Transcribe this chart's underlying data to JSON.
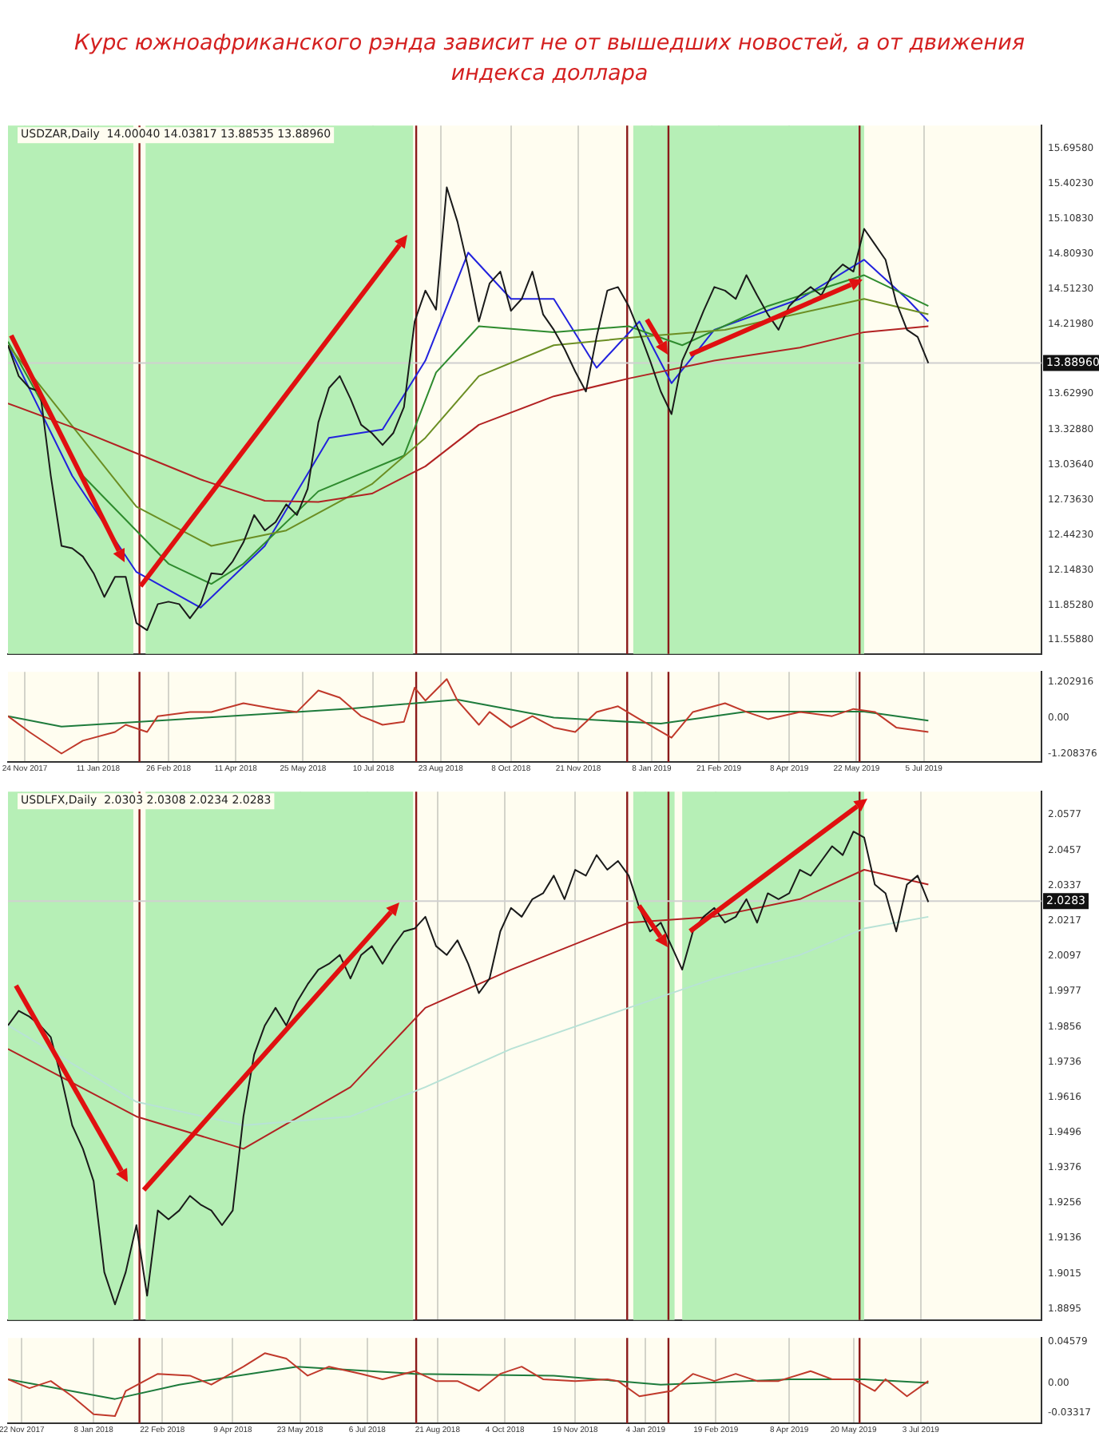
{
  "chart_data": [
    {
      "type": "line",
      "title": "Курс южноафриканского рэнда зависит не от вышедших новостей, а от движения индекса доллара",
      "subtitle": "USDZAR,Daily  14.00040 14.03817 13.88535 13.88960",
      "grid": "x",
      "tick_labels": "y",
      "x": [
        "2017-11-13",
        "2017-11-20",
        "2017-11-27",
        "2017-12-04",
        "2017-12-11",
        "2017-12-18",
        "2017-12-25",
        "2018-01-01",
        "2018-01-08",
        "2018-01-15",
        "2018-01-22",
        "2018-01-29",
        "2018-02-05",
        "2018-02-12",
        "2018-02-19",
        "2018-02-26",
        "2018-03-05",
        "2018-03-12",
        "2018-03-19",
        "2018-03-26",
        "2018-04-02",
        "2018-04-09",
        "2018-04-16",
        "2018-04-23",
        "2018-04-30",
        "2018-05-07",
        "2018-05-14",
        "2018-05-21",
        "2018-05-28",
        "2018-06-04",
        "2018-06-11",
        "2018-06-18",
        "2018-06-25",
        "2018-07-02",
        "2018-07-09",
        "2018-07-16",
        "2018-07-23",
        "2018-07-30",
        "2018-08-06",
        "2018-08-13",
        "2018-08-20",
        "2018-08-27",
        "2018-09-03",
        "2018-09-10",
        "2018-09-17",
        "2018-09-24",
        "2018-10-01",
        "2018-10-08",
        "2018-10-15",
        "2018-10-22",
        "2018-10-29",
        "2018-11-05",
        "2018-11-12",
        "2018-11-19",
        "2018-11-26",
        "2018-12-03",
        "2018-12-10",
        "2018-12-17",
        "2018-12-24",
        "2018-12-31",
        "2019-01-07",
        "2019-01-14",
        "2019-01-21",
        "2019-01-28",
        "2019-02-04",
        "2019-02-11",
        "2019-02-18",
        "2019-02-25",
        "2019-03-04",
        "2019-03-11",
        "2019-03-18",
        "2019-03-25",
        "2019-04-01",
        "2019-04-08",
        "2019-04-15",
        "2019-04-22",
        "2019-04-29",
        "2019-05-06",
        "2019-05-13",
        "2019-05-20",
        "2019-05-27",
        "2019-06-03",
        "2019-06-10",
        "2019-06-17",
        "2019-06-24",
        "2019-07-01",
        "2019-07-08"
      ],
      "series": [
        {
          "color": "#1a1a1a",
          "values": [
            14.04,
            13.78,
            13.68,
            13.65,
            12.94,
            12.35,
            12.33,
            12.26,
            12.12,
            11.92,
            12.09,
            12.09,
            11.7,
            11.64,
            11.86,
            11.88,
            11.86,
            11.74,
            11.86,
            12.12,
            12.11,
            12.22,
            12.38,
            12.61,
            12.48,
            12.55,
            12.7,
            12.61,
            12.83,
            13.39,
            13.68,
            13.78,
            13.59,
            13.37,
            13.3,
            13.2,
            13.3,
            13.52,
            14.24,
            14.5,
            14.34,
            15.37,
            15.08,
            14.69,
            14.24,
            14.56,
            14.66,
            14.33,
            14.43,
            14.66,
            14.3,
            14.17,
            14.01,
            13.82,
            13.65,
            14.11,
            14.5,
            14.53,
            14.37,
            14.15,
            13.91,
            13.65,
            13.46,
            13.91,
            14.11,
            14.33,
            14.53,
            14.5,
            14.43,
            14.63,
            14.46,
            14.3,
            14.17,
            14.37,
            14.46,
            14.53,
            14.46,
            14.63,
            14.72,
            14.66,
            15.02,
            14.89,
            14.76,
            14.4,
            14.17,
            14.11,
            13.89
          ]
        },
        {
          "color": "#b22222",
          "x": [
            "2017-11-13",
            "2017-12-25",
            "2018-02-05",
            "2018-03-19",
            "2018-04-30",
            "2018-06-04",
            "2018-07-09",
            "2018-08-13",
            "2018-09-17",
            "2018-11-05",
            "2018-12-24",
            "2019-02-18",
            "2019-04-15",
            "2019-05-27",
            "2019-07-08"
          ],
          "values": [
            13.55,
            13.35,
            13.13,
            12.91,
            12.73,
            12.72,
            12.79,
            13.02,
            13.37,
            13.61,
            13.76,
            13.91,
            14.02,
            14.15,
            14.2
          ]
        },
        {
          "color": "#6b8e23",
          "x": [
            "2017-11-13",
            "2018-02-05",
            "2018-03-26",
            "2018-05-14",
            "2018-07-09",
            "2018-08-13",
            "2018-09-17",
            "2018-11-05",
            "2018-12-31",
            "2019-02-25",
            "2019-05-27",
            "2019-07-08"
          ],
          "values": [
            14.04,
            12.68,
            12.35,
            12.48,
            12.87,
            13.26,
            13.78,
            14.04,
            14.11,
            14.17,
            14.43,
            14.3
          ]
        },
        {
          "color": "#2e8b2e",
          "x": [
            "2017-11-13",
            "2018-01-01",
            "2018-02-26",
            "2018-03-26",
            "2018-04-16",
            "2018-06-04",
            "2018-07-30",
            "2018-08-20",
            "2018-09-17",
            "2018-11-05",
            "2018-12-24",
            "2019-01-28",
            "2019-03-25",
            "2019-05-27",
            "2019-07-08"
          ],
          "values": [
            14.07,
            12.94,
            12.2,
            12.03,
            12.2,
            12.81,
            13.11,
            13.81,
            14.2,
            14.15,
            14.2,
            14.04,
            14.37,
            14.63,
            14.37
          ]
        },
        {
          "color": "#2222dd",
          "x": [
            "2017-11-13",
            "2017-12-25",
            "2018-02-05",
            "2018-03-19",
            "2018-04-30",
            "2018-06-11",
            "2018-07-16",
            "2018-08-13",
            "2018-09-10",
            "2018-10-08",
            "2018-11-05",
            "2018-12-03",
            "2018-12-31",
            "2019-01-21",
            "2019-02-18",
            "2019-04-15",
            "2019-05-27",
            "2019-06-24",
            "2019-07-08"
          ],
          "values": [
            14.04,
            12.94,
            12.13,
            11.83,
            12.35,
            13.26,
            13.33,
            13.91,
            14.82,
            14.43,
            14.43,
            13.85,
            14.24,
            13.72,
            14.17,
            14.43,
            14.76,
            14.43,
            14.24
          ]
        }
      ],
      "xlim": [
        "2017-11-13",
        "2019-09-20"
      ],
      "xticks": [
        {
          "value": "2017-11-24",
          "label": null
        },
        {
          "value": "2018-01-11",
          "label": null
        },
        {
          "value": "2018-02-26",
          "label": null
        },
        {
          "value": "2018-04-11",
          "label": null
        },
        {
          "value": "2018-05-25",
          "label": null
        },
        {
          "value": "2018-07-10",
          "label": null
        },
        {
          "value": "2018-08-23",
          "label": null
        },
        {
          "value": "2018-10-08",
          "label": null
        },
        {
          "value": "2018-11-21",
          "label": null
        },
        {
          "value": "2019-01-08",
          "label": null
        },
        {
          "value": "2019-02-21",
          "label": null
        },
        {
          "value": "2019-04-08",
          "label": null
        },
        {
          "value": "2019-05-22",
          "label": null
        },
        {
          "value": "2019-07-05",
          "label": null
        }
      ],
      "ylim": [
        11.44,
        15.89
      ],
      "yticks": [
        {
          "value": 11.5588,
          "label": "11.55880"
        },
        {
          "value": 11.8528,
          "label": "11.85280"
        },
        {
          "value": 12.1483,
          "label": "12.14830"
        },
        {
          "value": 12.4423,
          "label": "12.44230"
        },
        {
          "value": 12.7363,
          "label": "12.73630"
        },
        {
          "value": 13.0364,
          "label": "13.03640"
        },
        {
          "value": 13.3288,
          "label": "13.32880"
        },
        {
          "value": 13.6299,
          "label": "13.62990"
        },
        {
          "value": 14.2198,
          "label": "14.21980"
        },
        {
          "value": 14.5123,
          "label": "14.51230"
        },
        {
          "value": 14.8093,
          "label": "14.80930"
        },
        {
          "value": 15.1083,
          "label": "15.10830"
        },
        {
          "value": 15.4023,
          "label": "15.40230"
        },
        {
          "value": 15.6958,
          "label": "15.69580"
        }
      ],
      "bands": [
        {
          "axis": "x",
          "from": "2017-11-13",
          "to": "2018-02-03",
          "color": "#b6efb6"
        },
        {
          "axis": "x",
          "from": "2018-02-11",
          "to": "2018-08-05",
          "color": "#b6efb6"
        },
        {
          "axis": "x",
          "from": "2018-12-27",
          "to": "2019-05-27",
          "color": "#b6efb6"
        }
      ],
      "ref_lines": [
        {
          "axis": "x",
          "value": "2018-02-07",
          "color": "#8b1a1a"
        },
        {
          "axis": "x",
          "value": "2018-08-07",
          "color": "#8b1a1a"
        },
        {
          "axis": "x",
          "value": "2018-12-23",
          "color": "#8b1a1a"
        },
        {
          "axis": "x",
          "value": "2019-01-19",
          "color": "#8b1a1a"
        },
        {
          "axis": "x",
          "value": "2019-05-24",
          "color": "#8b1a1a"
        },
        {
          "axis": "y",
          "value": 13.8896,
          "label": "13.88960",
          "color": "#d0d0d0"
        }
      ]
    },
    {
      "type": "line",
      "grid": "x",
      "series": [
        {
          "color": "#c0392b",
          "x": [
            "2017-11-13",
            "2017-11-27",
            "2017-12-18",
            "2018-01-01",
            "2018-01-22",
            "2018-01-29",
            "2018-02-12",
            "2018-02-19",
            "2018-03-12",
            "2018-03-26",
            "2018-04-16",
            "2018-05-07",
            "2018-05-21",
            "2018-06-04",
            "2018-06-18",
            "2018-07-02",
            "2018-07-16",
            "2018-07-30",
            "2018-08-06",
            "2018-08-13",
            "2018-08-27",
            "2018-09-03",
            "2018-09-17",
            "2018-09-24",
            "2018-10-08",
            "2018-10-22",
            "2018-11-05",
            "2018-11-19",
            "2018-12-03",
            "2018-12-17",
            "2018-12-31",
            "2019-01-21",
            "2019-02-04",
            "2019-02-25",
            "2019-03-11",
            "2019-03-25",
            "2019-04-15",
            "2019-05-06",
            "2019-05-20",
            "2019-06-03",
            "2019-06-17",
            "2019-07-08"
          ],
          "values": [
            0.05,
            -0.48,
            -1.2,
            -0.77,
            -0.48,
            -0.24,
            -0.48,
            0.05,
            0.19,
            0.19,
            0.48,
            0.29,
            0.19,
            0.91,
            0.67,
            0.05,
            -0.24,
            -0.14,
            1.0,
            0.57,
            1.29,
            0.57,
            -0.24,
            0.19,
            -0.33,
            0.05,
            -0.33,
            -0.48,
            0.19,
            0.38,
            -0.05,
            -0.67,
            0.19,
            0.48,
            0.19,
            -0.05,
            0.19,
            0.05,
            0.29,
            0.19,
            -0.33,
            -0.48
          ]
        },
        {
          "color": "#1e7b3c",
          "x": [
            "2017-11-13",
            "2017-12-18",
            "2018-06-25",
            "2018-09-03",
            "2018-11-05",
            "2019-01-14",
            "2019-03-11",
            "2019-05-27",
            "2019-07-08"
          ],
          "values": [
            0.05,
            -0.3,
            0.3,
            0.6,
            0.0,
            -0.2,
            0.2,
            0.2,
            -0.1
          ]
        }
      ],
      "xlim": [
        "2017-11-13",
        "2019-09-20"
      ],
      "xticks": [
        {
          "value": "2017-11-24",
          "label": "24 Nov 2017"
        },
        {
          "value": "2018-01-11",
          "label": "11 Jan 2018"
        },
        {
          "value": "2018-02-26",
          "label": "26 Feb 2018"
        },
        {
          "value": "2018-04-11",
          "label": "11 Apr 2018"
        },
        {
          "value": "2018-05-25",
          "label": "25 May 2018"
        },
        {
          "value": "2018-07-10",
          "label": "10 Jul 2018"
        },
        {
          "value": "2018-08-23",
          "label": "23 Aug 2018"
        },
        {
          "value": "2018-10-08",
          "label": "8 Oct 2018"
        },
        {
          "value": "2018-11-21",
          "label": "21 Nov 2018"
        },
        {
          "value": "2019-01-08",
          "label": "8 Jan 2019"
        },
        {
          "value": "2019-02-21",
          "label": "21 Feb 2019"
        },
        {
          "value": "2019-04-08",
          "label": "8 Apr 2019"
        },
        {
          "value": "2019-05-22",
          "label": "22 May 2019"
        },
        {
          "value": "2019-07-05",
          "label": "5 Jul 2019"
        }
      ],
      "ylim": [
        -1.48,
        1.53
      ],
      "yticks": [
        {
          "value": -1.208376,
          "label": "-1.208376"
        },
        {
          "value": 0,
          "label": "0.00"
        },
        {
          "value": 1.202916,
          "label": "1.202916"
        }
      ],
      "ref_lines": [
        {
          "axis": "x",
          "value": "2018-02-07",
          "color": "#8b1a1a"
        },
        {
          "axis": "x",
          "value": "2018-08-07",
          "color": "#8b1a1a"
        },
        {
          "axis": "x",
          "value": "2018-12-23",
          "color": "#8b1a1a"
        },
        {
          "axis": "x",
          "value": "2019-01-19",
          "color": "#8b1a1a"
        },
        {
          "axis": "x",
          "value": "2019-05-24",
          "color": "#8b1a1a"
        }
      ]
    },
    {
      "type": "line",
      "title": "USDLFX,Daily  2.0303 2.0308 2.0234 2.0283",
      "grid": "x",
      "tick_labels": "y",
      "x": [
        "2017-11-13",
        "2017-11-20",
        "2017-11-27",
        "2017-12-04",
        "2017-12-11",
        "2017-12-18",
        "2017-12-25",
        "2018-01-01",
        "2018-01-08",
        "2018-01-15",
        "2018-01-22",
        "2018-01-29",
        "2018-02-05",
        "2018-02-12",
        "2018-02-19",
        "2018-02-26",
        "2018-03-05",
        "2018-03-12",
        "2018-03-19",
        "2018-03-26",
        "2018-04-02",
        "2018-04-09",
        "2018-04-16",
        "2018-04-23",
        "2018-04-30",
        "2018-05-07",
        "2018-05-14",
        "2018-05-21",
        "2018-05-28",
        "2018-06-04",
        "2018-06-11",
        "2018-06-18",
        "2018-06-25",
        "2018-07-02",
        "2018-07-09",
        "2018-07-16",
        "2018-07-23",
        "2018-07-30",
        "2018-08-06",
        "2018-08-13",
        "2018-08-20",
        "2018-08-27",
        "2018-09-03",
        "2018-09-10",
        "2018-09-17",
        "2018-09-24",
        "2018-10-01",
        "2018-10-08",
        "2018-10-15",
        "2018-10-22",
        "2018-10-29",
        "2018-11-05",
        "2018-11-12",
        "2018-11-19",
        "2018-11-26",
        "2018-12-03",
        "2018-12-10",
        "2018-12-17",
        "2018-12-24",
        "2018-12-31",
        "2019-01-07",
        "2019-01-14",
        "2019-01-21",
        "2019-01-28",
        "2019-02-04",
        "2019-02-11",
        "2019-02-18",
        "2019-02-25",
        "2019-03-04",
        "2019-03-11",
        "2019-03-18",
        "2019-03-25",
        "2019-04-01",
        "2019-04-08",
        "2019-04-15",
        "2019-04-22",
        "2019-04-29",
        "2019-05-06",
        "2019-05-13",
        "2019-05-20",
        "2019-05-27",
        "2019-06-03",
        "2019-06-10",
        "2019-06-17",
        "2019-06-24",
        "2019-07-01",
        "2019-07-08"
      ],
      "series": [
        {
          "color": "#1a1a1a",
          "values": [
            1.986,
            1.991,
            1.989,
            1.986,
            1.982,
            1.968,
            1.952,
            1.944,
            1.933,
            1.902,
            1.891,
            1.902,
            1.918,
            1.894,
            1.923,
            1.92,
            1.923,
            1.928,
            1.925,
            1.923,
            1.918,
            1.923,
            1.955,
            1.976,
            1.986,
            1.992,
            1.986,
            1.994,
            2.0,
            2.005,
            2.007,
            2.01,
            2.002,
            2.01,
            2.013,
            2.007,
            2.013,
            2.018,
            2.019,
            2.023,
            2.013,
            2.01,
            2.015,
            2.007,
            1.997,
            2.002,
            2.018,
            2.026,
            2.023,
            2.029,
            2.031,
            2.037,
            2.029,
            2.039,
            2.037,
            2.044,
            2.039,
            2.042,
            2.037,
            2.026,
            2.018,
            2.021,
            2.013,
            2.005,
            2.018,
            2.023,
            2.026,
            2.021,
            2.023,
            2.029,
            2.021,
            2.031,
            2.029,
            2.031,
            2.039,
            2.037,
            2.042,
            2.047,
            2.044,
            2.052,
            2.05,
            2.034,
            2.031,
            2.018,
            2.034,
            2.037,
            2.028
          ]
        },
        {
          "color": "#b8e2d6",
          "x": [
            "2017-11-13",
            "2018-02-05",
            "2018-04-16",
            "2018-06-25",
            "2018-08-13",
            "2018-10-08",
            "2018-12-24",
            "2019-02-18",
            "2019-04-15",
            "2019-05-27",
            "2019-07-08"
          ],
          "values": [
            1.986,
            1.96,
            1.952,
            1.955,
            1.965,
            1.978,
            1.992,
            2.002,
            2.01,
            2.019,
            2.023
          ]
        },
        {
          "color": "#b22222",
          "x": [
            "2017-11-13",
            "2018-02-05",
            "2018-04-16",
            "2018-06-25",
            "2018-08-13",
            "2018-10-08",
            "2018-12-24",
            "2019-02-18",
            "2019-04-15",
            "2019-05-27",
            "2019-07-08"
          ],
          "values": [
            1.978,
            1.955,
            1.944,
            1.965,
            1.992,
            2.005,
            2.021,
            2.023,
            2.029,
            2.039,
            2.034
          ]
        }
      ],
      "xlim": [
        "2017-11-13",
        "2019-09-20"
      ],
      "xticks": [
        {
          "value": "2017-11-22",
          "label": null
        },
        {
          "value": "2018-01-08",
          "label": null
        },
        {
          "value": "2018-02-22",
          "label": null
        },
        {
          "value": "2018-04-09",
          "label": null
        },
        {
          "value": "2018-05-23",
          "label": null
        },
        {
          "value": "2018-07-06",
          "label": null
        },
        {
          "value": "2018-08-21",
          "label": null
        },
        {
          "value": "2018-10-04",
          "label": null
        },
        {
          "value": "2018-11-19",
          "label": null
        },
        {
          "value": "2019-01-04",
          "label": null
        },
        {
          "value": "2019-02-19",
          "label": null
        },
        {
          "value": "2019-04-08",
          "label": null
        },
        {
          "value": "2019-05-20",
          "label": null
        },
        {
          "value": "2019-07-03",
          "label": null
        }
      ],
      "ylim": [
        1.8857,
        2.0656
      ],
      "yticks": [
        {
          "value": 1.8895,
          "label": "1.8895"
        },
        {
          "value": 1.9015,
          "label": "1.9015"
        },
        {
          "value": 1.9136,
          "label": "1.9136"
        },
        {
          "value": 1.9256,
          "label": "1.9256"
        },
        {
          "value": 1.9376,
          "label": "1.9376"
        },
        {
          "value": 1.9496,
          "label": "1.9496"
        },
        {
          "value": 1.9616,
          "label": "1.9616"
        },
        {
          "value": 1.9736,
          "label": "1.9736"
        },
        {
          "value": 1.9856,
          "label": "1.9856"
        },
        {
          "value": 1.9977,
          "label": "1.9977"
        },
        {
          "value": 2.0097,
          "label": "2.0097"
        },
        {
          "value": 2.0217,
          "label": "2.0217"
        },
        {
          "value": 2.0337,
          "label": "2.0337"
        },
        {
          "value": 2.0457,
          "label": "2.0457"
        },
        {
          "value": 2.0577,
          "label": "2.0577"
        }
      ],
      "bands": [
        {
          "axis": "x",
          "from": "2017-11-13",
          "to": "2018-02-03",
          "color": "#b6efb6"
        },
        {
          "axis": "x",
          "from": "2018-02-11",
          "to": "2018-08-05",
          "color": "#b6efb6"
        },
        {
          "axis": "x",
          "from": "2018-12-27",
          "to": "2019-01-23",
          "color": "#b6efb6"
        },
        {
          "axis": "x",
          "from": "2019-01-28",
          "to": "2019-05-27",
          "color": "#b6efb6"
        }
      ],
      "ref_lines": [
        {
          "axis": "x",
          "value": "2018-02-07",
          "color": "#8b1a1a"
        },
        {
          "axis": "x",
          "value": "2018-08-07",
          "color": "#8b1a1a"
        },
        {
          "axis": "x",
          "value": "2018-12-23",
          "color": "#8b1a1a"
        },
        {
          "axis": "x",
          "value": "2019-01-19",
          "color": "#8b1a1a"
        },
        {
          "axis": "x",
          "value": "2019-05-24",
          "color": "#8b1a1a"
        },
        {
          "axis": "y",
          "value": 2.0283,
          "label": "2.0283",
          "color": "#d0d0d0"
        }
      ]
    },
    {
      "type": "line",
      "grid": "x",
      "series": [
        {
          "color": "#c0392b",
          "x": [
            "2017-11-13",
            "2017-11-27",
            "2017-12-11",
            "2017-12-25",
            "2018-01-08",
            "2018-01-22",
            "2018-01-29",
            "2018-02-19",
            "2018-03-12",
            "2018-03-26",
            "2018-04-16",
            "2018-04-30",
            "2018-05-14",
            "2018-05-28",
            "2018-06-11",
            "2018-07-02",
            "2018-07-16",
            "2018-08-06",
            "2018-08-20",
            "2018-09-03",
            "2018-09-17",
            "2018-10-01",
            "2018-10-15",
            "2018-10-29",
            "2018-11-19",
            "2018-12-10",
            "2018-12-17",
            "2018-12-31",
            "2019-01-21",
            "2019-02-04",
            "2019-02-18",
            "2019-03-04",
            "2019-03-18",
            "2019-04-01",
            "2019-04-22",
            "2019-05-06",
            "2019-05-20",
            "2019-06-03",
            "2019-06-10",
            "2019-06-24",
            "2019-07-08"
          ],
          "values": [
            0.004,
            -0.006,
            0.002,
            -0.015,
            -0.035,
            -0.037,
            -0.009,
            0.01,
            0.008,
            -0.002,
            0.018,
            0.033,
            0.027,
            0.008,
            0.018,
            0.01,
            0.004,
            0.013,
            0.002,
            0.002,
            -0.009,
            0.01,
            0.018,
            0.004,
            0.002,
            0.004,
            0.002,
            -0.015,
            -0.009,
            0.01,
            0.002,
            0.01,
            0.002,
            0.002,
            0.013,
            0.004,
            0.004,
            -0.009,
            0.004,
            -0.015,
            0.002
          ]
        },
        {
          "color": "#1e7b3c",
          "x": [
            "2017-11-13",
            "2018-01-22",
            "2018-03-05",
            "2018-05-21",
            "2018-08-06",
            "2018-11-05",
            "2019-01-14",
            "2019-04-08",
            "2019-05-27",
            "2019-07-08"
          ],
          "values": [
            0.004,
            -0.018,
            -0.002,
            0.018,
            0.01,
            0.008,
            -0.002,
            0.004,
            0.004,
            0.0
          ]
        }
      ],
      "xlim": [
        "2017-11-13",
        "2019-09-20"
      ],
      "xticks": [
        {
          "value": "2017-11-22",
          "label": "22 Nov 2017"
        },
        {
          "value": "2018-01-08",
          "label": "8 Jan 2018"
        },
        {
          "value": "2018-02-22",
          "label": "22 Feb 2018"
        },
        {
          "value": "2018-04-09",
          "label": "9 Apr 2018"
        },
        {
          "value": "2018-05-23",
          "label": "23 May 2018"
        },
        {
          "value": "2018-07-06",
          "label": "6 Jul 2018"
        },
        {
          "value": "2018-08-21",
          "label": "21 Aug 2018"
        },
        {
          "value": "2018-10-04",
          "label": "4 Oct 2018"
        },
        {
          "value": "2018-11-19",
          "label": "19 Nov 2018"
        },
        {
          "value": "2019-01-04",
          "label": "4 Jan 2019"
        },
        {
          "value": "2019-02-19",
          "label": "19 Feb 2019"
        },
        {
          "value": "2019-04-08",
          "label": "8 Apr 2019"
        },
        {
          "value": "2019-05-20",
          "label": "20 May 2019"
        },
        {
          "value": "2019-07-03",
          "label": "3 Jul 2019"
        }
      ],
      "ylim": [
        -0.045,
        0.05
      ],
      "yticks": [
        {
          "value": -0.03317,
          "label": "-0.03317"
        },
        {
          "value": 0,
          "label": "0.00"
        },
        {
          "value": 0.04579,
          "label": "0.04579"
        }
      ],
      "ref_lines": [
        {
          "axis": "x",
          "value": "2018-02-07",
          "color": "#8b1a1a"
        },
        {
          "axis": "x",
          "value": "2018-08-07",
          "color": "#8b1a1a"
        },
        {
          "axis": "x",
          "value": "2018-12-23",
          "color": "#8b1a1a"
        },
        {
          "axis": "x",
          "value": "2019-01-19",
          "color": "#8b1a1a"
        },
        {
          "axis": "x",
          "value": "2019-05-24",
          "color": "#8b1a1a"
        }
      ]
    }
  ]
}
